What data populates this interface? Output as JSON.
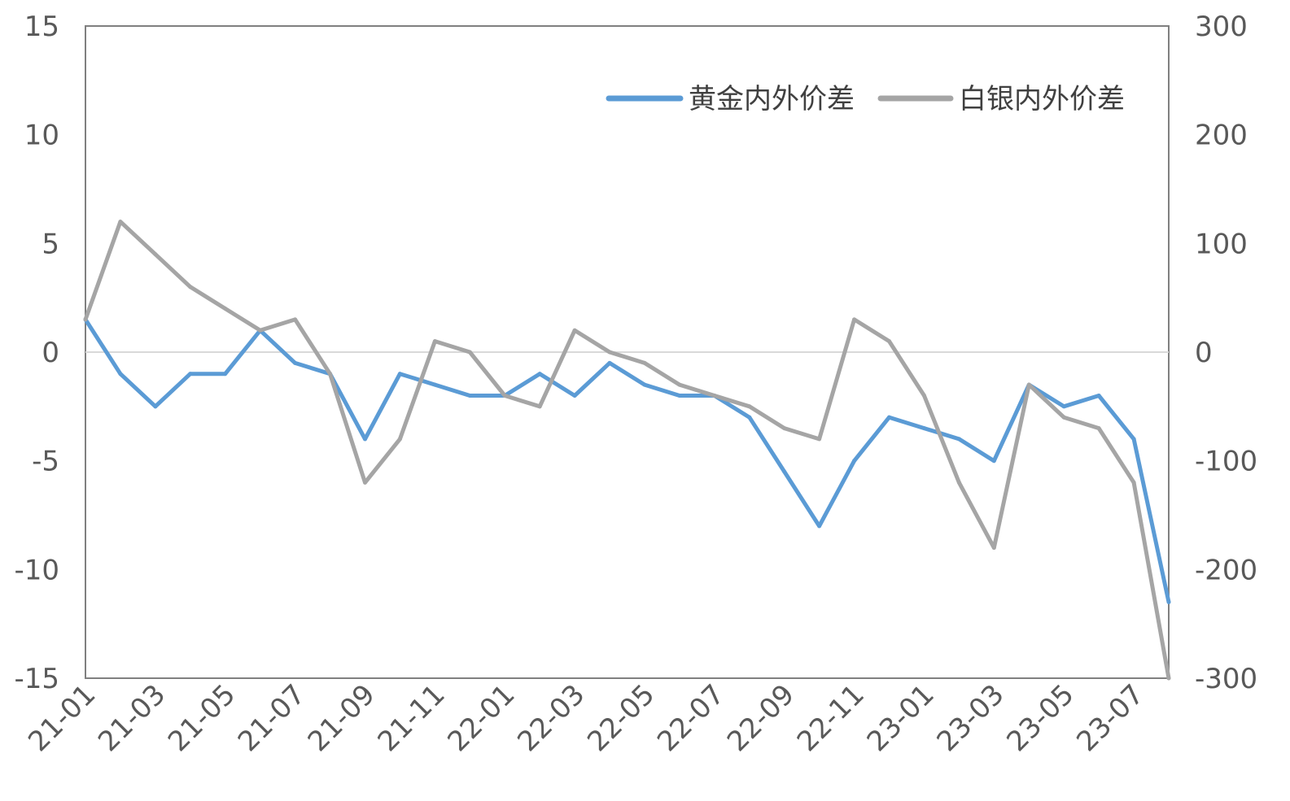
{
  "chart_data": {
    "type": "line",
    "title": "",
    "xlabel": "",
    "ylabel": "",
    "x_ticks": [
      "21-01",
      "21-03",
      "21-05",
      "21-07",
      "21-09",
      "21-11",
      "22-01",
      "22-03",
      "22-05",
      "22-07",
      "22-09",
      "22-11",
      "23-01",
      "23-03",
      "23-05",
      "23-07"
    ],
    "x_range": [
      "2021-01",
      "2023-08"
    ],
    "y_left": {
      "ylim": [
        -15,
        15
      ],
      "ticks": [
        "15",
        "10",
        "5",
        "0",
        "-5",
        "-10",
        "-15"
      ]
    },
    "y_right": {
      "ylim": [
        -300,
        300
      ],
      "ticks": [
        "300",
        "200",
        "100",
        "0",
        "-100",
        "-200",
        "-300"
      ]
    },
    "zero_line": true,
    "grid": false,
    "legend_position": "top-right",
    "series": [
      {
        "name": "黄金内外价差",
        "axis": "left",
        "color": "#5B9BD5",
        "x": [
          "2021-01",
          "2021-02",
          "2021-03",
          "2021-04",
          "2021-05",
          "2021-06",
          "2021-07",
          "2021-08",
          "2021-09",
          "2021-10",
          "2021-11",
          "2021-12",
          "2022-01",
          "2022-02",
          "2022-03",
          "2022-04",
          "2022-05",
          "2022-06",
          "2022-07",
          "2022-08",
          "2022-09",
          "2022-10",
          "2022-11",
          "2022-12",
          "2023-01",
          "2023-02",
          "2023-03",
          "2023-04",
          "2023-05",
          "2023-06",
          "2023-07",
          "2023-08"
        ],
        "values": [
          1.5,
          -1.0,
          -2.5,
          -1.0,
          -1.0,
          1.0,
          -0.5,
          -1.0,
          -4.0,
          -1.0,
          -1.5,
          -2.0,
          -2.0,
          -1.0,
          -2.0,
          -0.5,
          -1.5,
          -2.0,
          -2.0,
          -3.0,
          -5.5,
          -8.0,
          -5.0,
          -3.0,
          -3.5,
          -4.0,
          -5.0,
          -1.5,
          -2.5,
          -2.0,
          -4.0,
          -11.5
        ]
      },
      {
        "name": "白银内外价差",
        "axis": "right",
        "color": "#A5A5A5",
        "x": [
          "2021-01",
          "2021-02",
          "2021-03",
          "2021-04",
          "2021-05",
          "2021-06",
          "2021-07",
          "2021-08",
          "2021-09",
          "2021-10",
          "2021-11",
          "2021-12",
          "2022-01",
          "2022-02",
          "2022-03",
          "2022-04",
          "2022-05",
          "2022-06",
          "2022-07",
          "2022-08",
          "2022-09",
          "2022-10",
          "2022-11",
          "2022-12",
          "2023-01",
          "2023-02",
          "2023-03",
          "2023-04",
          "2023-05",
          "2023-06",
          "2023-07",
          "2023-08"
        ],
        "values": [
          30,
          120,
          90,
          60,
          40,
          20,
          30,
          -20,
          -120,
          -80,
          10,
          0,
          -40,
          -50,
          20,
          0,
          -10,
          -30,
          -40,
          -50,
          -70,
          -80,
          30,
          10,
          -40,
          -120,
          -180,
          -30,
          -60,
          -70,
          -120,
          -300
        ]
      }
    ]
  }
}
